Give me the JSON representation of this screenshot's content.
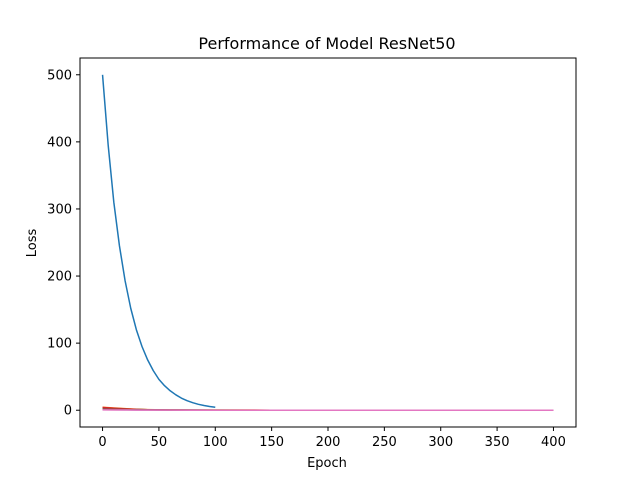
{
  "chart_data": {
    "type": "line",
    "title": "Performance of Model ResNet50",
    "xlabel": "Epoch",
    "ylabel": "Loss",
    "xlim": [
      -20,
      420
    ],
    "ylim": [
      -25,
      525
    ],
    "xticks": [
      0,
      50,
      100,
      150,
      200,
      250,
      300,
      350,
      400
    ],
    "yticks": [
      0,
      100,
      200,
      300,
      400,
      500
    ],
    "grid": false,
    "series": [
      {
        "color": "#1f77b4",
        "x": [
          0,
          5,
          10,
          15,
          20,
          25,
          30,
          35,
          40,
          45,
          50,
          55,
          60,
          65,
          70,
          75,
          80,
          85,
          90,
          95,
          100
        ],
        "y": [
          500,
          395,
          310,
          245,
          193,
          152,
          120,
          95,
          75,
          59,
          46,
          36.5,
          29,
          23,
          18,
          14.2,
          11.2,
          8.8,
          7,
          5.6,
          4.5
        ]
      },
      {
        "color": "#ff7f0e",
        "x": [
          0,
          10,
          20,
          30,
          40,
          60,
          80,
          100,
          150,
          200,
          250,
          300,
          350,
          400
        ],
        "y": [
          4.5,
          3.3,
          2.3,
          1.5,
          0.9,
          0.4,
          0.2,
          0.1,
          0.05,
          0.03,
          0.02,
          0.02,
          0.02,
          0.02
        ]
      },
      {
        "color": "#2ca02c",
        "x": [
          0,
          10,
          20,
          30,
          40,
          60,
          80,
          100,
          150,
          200,
          250,
          300,
          350,
          400
        ],
        "y": [
          3.5,
          2.6,
          1.8,
          1.2,
          0.7,
          0.3,
          0.15,
          0.08,
          0.04,
          0.03,
          0.02,
          0.02,
          0.02,
          0.02
        ]
      },
      {
        "color": "#d62728",
        "x": [
          0,
          10,
          20,
          30,
          40,
          60,
          80,
          100,
          150,
          200,
          250,
          300,
          350,
          400
        ],
        "y": [
          4.0,
          3.0,
          2.0,
          1.3,
          0.8,
          0.35,
          0.18,
          0.1,
          0.05,
          0.03,
          0.02,
          0.02,
          0.02,
          0.02
        ]
      },
      {
        "color": "#9467bd",
        "x": [
          0,
          10,
          20,
          30,
          40,
          60,
          80,
          100,
          150,
          200,
          250,
          300,
          350,
          400
        ],
        "y": [
          1.0,
          0.8,
          0.6,
          0.4,
          0.3,
          0.15,
          0.08,
          0.05,
          0.03,
          0.02,
          0.02,
          0.02,
          0.02,
          0.02
        ]
      },
      {
        "color": "#8c564b",
        "x": [
          0,
          10,
          20,
          30,
          40,
          60,
          80,
          100,
          150,
          200,
          250,
          300,
          350,
          400
        ],
        "y": [
          2.0,
          1.5,
          1.0,
          0.7,
          0.45,
          0.2,
          0.1,
          0.06,
          0.03,
          0.02,
          0.02,
          0.02,
          0.02,
          0.02
        ]
      },
      {
        "color": "#e377c2",
        "x": [
          0,
          10,
          20,
          30,
          40,
          60,
          80,
          100,
          150,
          200,
          250,
          300,
          350,
          400
        ],
        "y": [
          0.5,
          0.4,
          0.3,
          0.2,
          0.15,
          0.08,
          0.05,
          0.03,
          0.02,
          0.02,
          0.02,
          0.02,
          0.02,
          0.02
        ]
      }
    ]
  }
}
